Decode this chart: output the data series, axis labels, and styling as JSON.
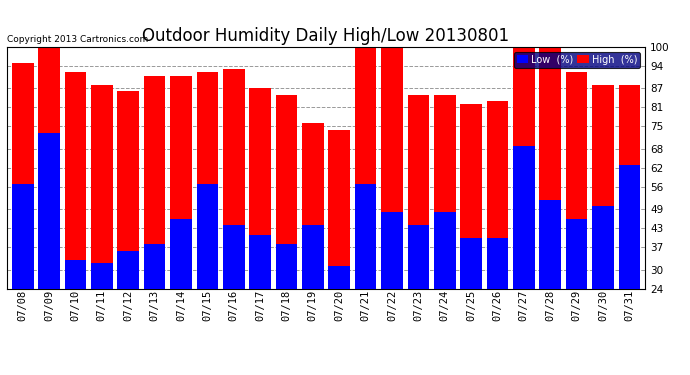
{
  "title": "Outdoor Humidity Daily High/Low 20130801",
  "copyright": "Copyright 2013 Cartronics.com",
  "dates": [
    "07/08",
    "07/09",
    "07/10",
    "07/11",
    "07/12",
    "07/13",
    "07/14",
    "07/15",
    "07/16",
    "07/17",
    "07/18",
    "07/19",
    "07/20",
    "07/21",
    "07/22",
    "07/23",
    "07/24",
    "07/25",
    "07/26",
    "07/27",
    "07/28",
    "07/29",
    "07/30",
    "07/31"
  ],
  "high": [
    95,
    100,
    92,
    88,
    86,
    91,
    91,
    92,
    93,
    87,
    85,
    76,
    74,
    100,
    100,
    85,
    85,
    82,
    83,
    100,
    100,
    92,
    88,
    88
  ],
  "low": [
    57,
    73,
    33,
    32,
    36,
    38,
    46,
    57,
    44,
    41,
    38,
    44,
    31,
    57,
    48,
    44,
    48,
    40,
    40,
    69,
    52,
    46,
    50,
    63
  ],
  "ylim_min": 24,
  "ylim_max": 100,
  "yticks": [
    24,
    30,
    37,
    43,
    49,
    56,
    62,
    68,
    75,
    81,
    87,
    94,
    100
  ],
  "high_color": "#ff0000",
  "low_color": "#0000ff",
  "bg_color": "#ffffff",
  "grid_color": "#999999",
  "title_fontsize": 12,
  "tick_fontsize": 7.5,
  "legend_low_label": "Low  (%)",
  "legend_high_label": "High  (%)",
  "legend_bg": "#000080"
}
